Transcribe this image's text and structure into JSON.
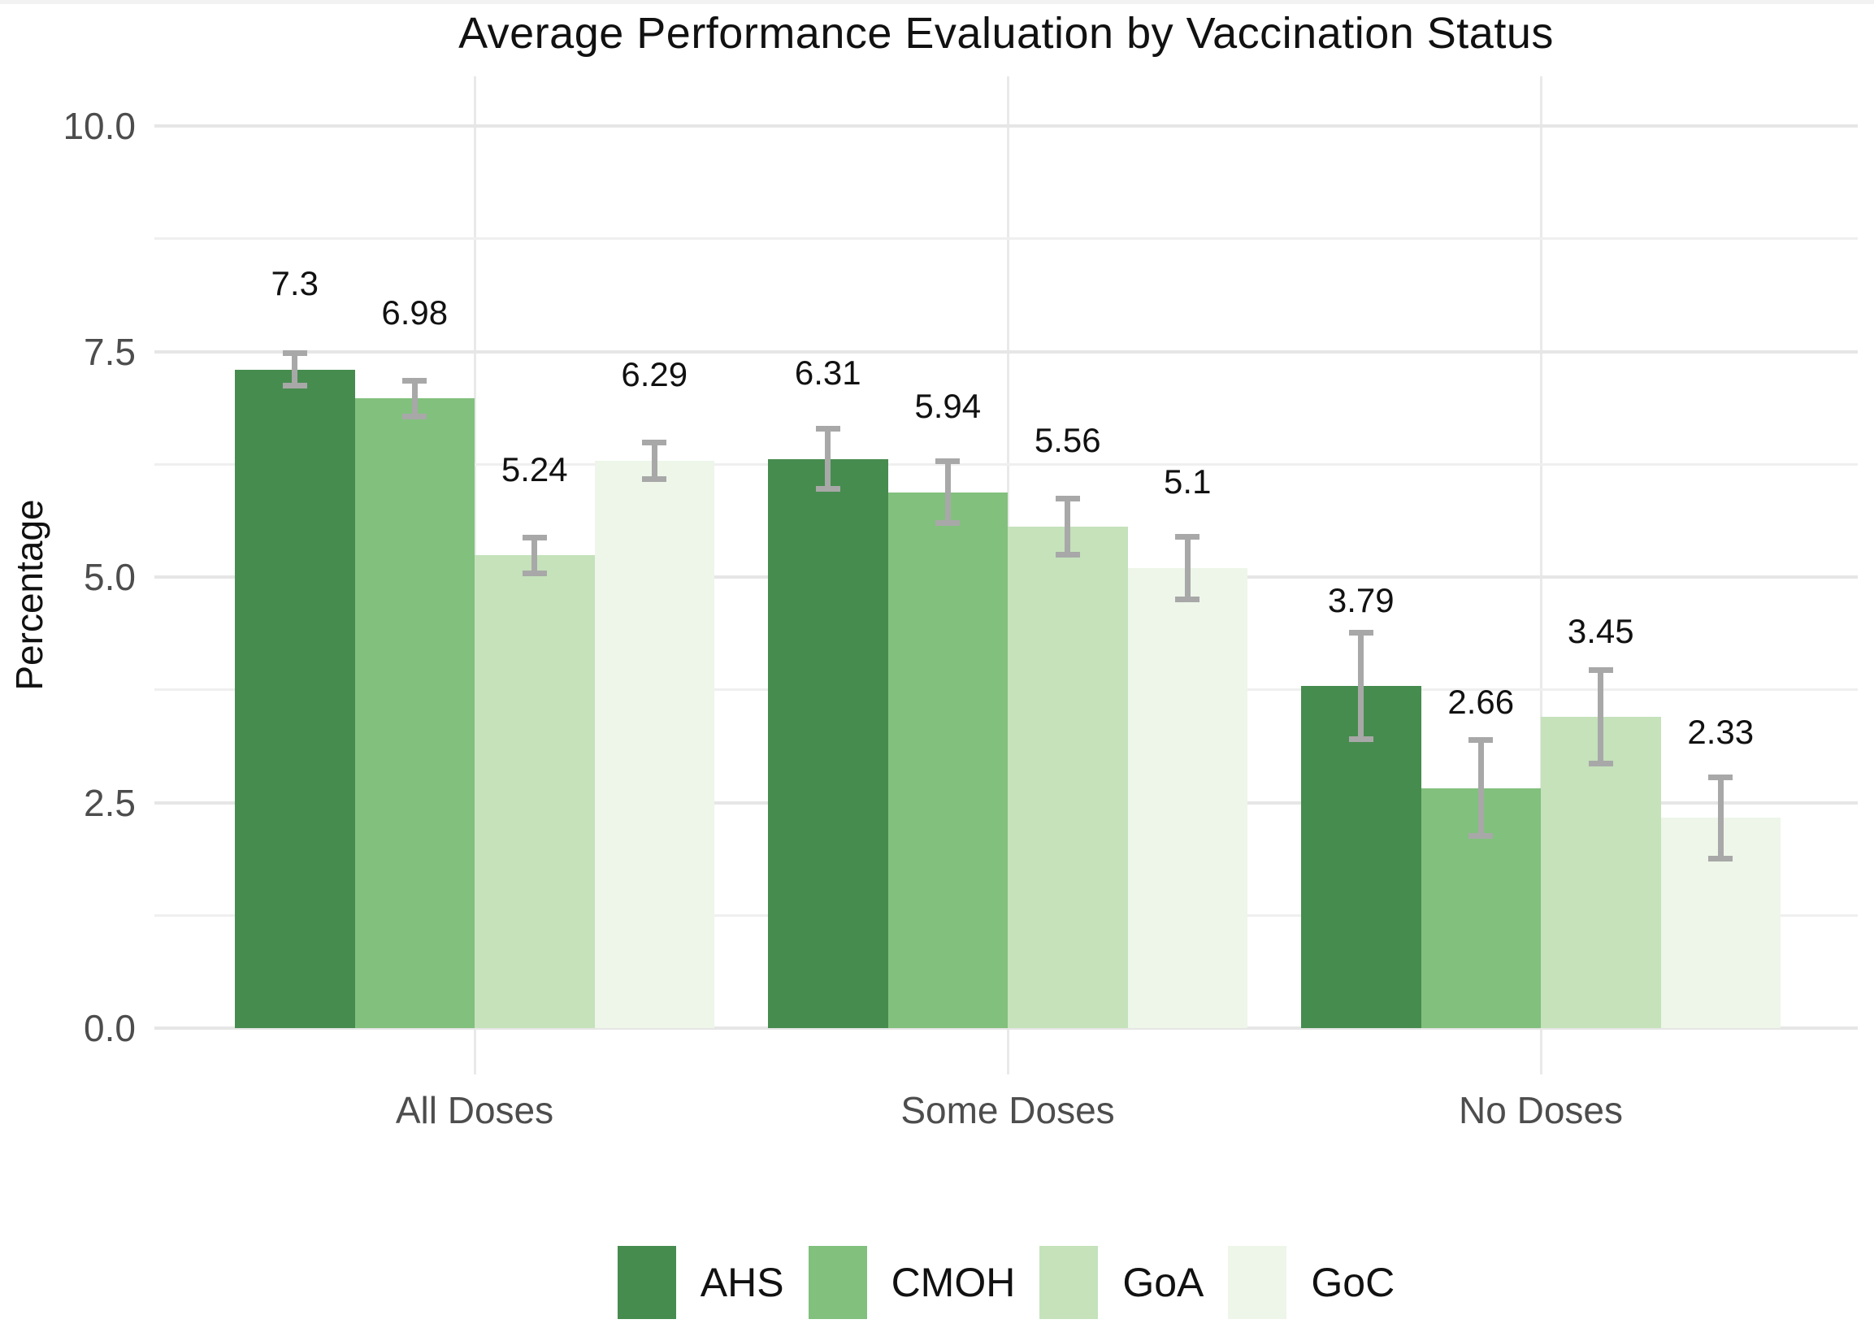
{
  "page": {
    "background": "#ffffff",
    "top_strip_color": "#f2f2f2"
  },
  "chart_data": {
    "type": "bar",
    "title": "Average Performance Evaluation by Vaccination Status",
    "ylabel": "Percentage",
    "xlabel": "",
    "categories": [
      "All Doses",
      "Some Doses",
      "No Doses"
    ],
    "series": [
      {
        "name": "AHS",
        "color": "#478c4f",
        "values": [
          7.3,
          6.31,
          3.79
        ],
        "errors": [
          0.18,
          0.33,
          0.59
        ]
      },
      {
        "name": "CMOH",
        "color": "#82c07d",
        "values": [
          6.98,
          5.94,
          2.66
        ],
        "errors": [
          0.2,
          0.34,
          0.53
        ]
      },
      {
        "name": "GoA",
        "color": "#c5e2bb",
        "values": [
          5.24,
          5.56,
          3.45
        ],
        "errors": [
          0.2,
          0.31,
          0.52
        ]
      },
      {
        "name": "GoC",
        "color": "#edf6e9",
        "values": [
          6.29,
          5.1,
          2.33
        ],
        "errors": [
          0.2,
          0.35,
          0.45
        ]
      }
    ],
    "value_labels": [
      [
        "7.3",
        "6.31",
        "3.79"
      ],
      [
        "6.98",
        "5.94",
        "2.66"
      ],
      [
        "5.24",
        "5.56",
        "3.45"
      ],
      [
        "6.29",
        "5.1",
        "2.33"
      ]
    ],
    "y_axis": {
      "tick_labels": [
        "10.0",
        "7.5",
        "5.0",
        "2.5",
        "0.0"
      ],
      "tick_values": [
        10,
        7.5,
        5,
        2.5,
        0
      ]
    },
    "ylim": [
      0,
      10
    ],
    "grid": {
      "major_color": "#e6e6e6",
      "minor_color": "#efefef",
      "vertical_color": "#e9e9e9",
      "minor_on": true
    },
    "error_bar_color": "#a8a8a8",
    "legend": {
      "position": "bottom",
      "labels": [
        "AHS",
        "CMOH",
        "GoA",
        "GoC"
      ]
    }
  }
}
